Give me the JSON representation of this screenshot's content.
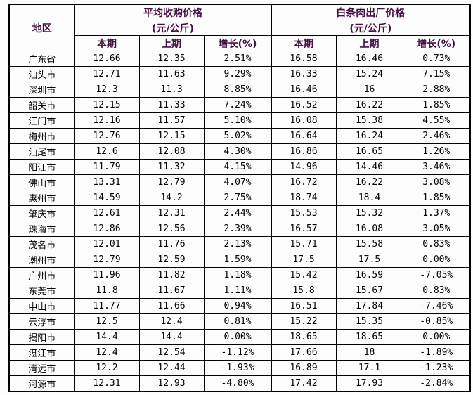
{
  "table": {
    "region_header": "地区",
    "groups": [
      {
        "title": "平均收购价格",
        "unit": "(元/公斤)"
      },
      {
        "title": "白条肉出厂价格",
        "unit": "(元/公斤)"
      }
    ],
    "sub_headers": [
      "本期",
      "上期",
      "增长(%)"
    ]
  },
  "colors": {
    "header_text": "#431043",
    "body_text": "#000000",
    "border": "#000000",
    "background": "#fdfdfd"
  },
  "chart_data": {
    "type": "table",
    "title": "",
    "columns": [
      "地区",
      "平均收购价格(元/公斤) 本期",
      "平均收购价格(元/公斤) 上期",
      "平均收购价格(元/公斤) 增长(%)",
      "白条肉出厂价格(元/公斤) 本期",
      "白条肉出厂价格(元/公斤) 上期",
      "白条肉出厂价格(元/公斤) 增长(%)"
    ],
    "rows": [
      [
        "广东省",
        "12.66",
        "12.35",
        "2.51%",
        "16.58",
        "16.46",
        "0.73%"
      ],
      [
        "汕头市",
        "12.71",
        "11.63",
        "9.29%",
        "16.33",
        "15.24",
        "7.15%"
      ],
      [
        "深圳市",
        "12.3",
        "11.3",
        "8.85%",
        "16.46",
        "16",
        "2.88%"
      ],
      [
        "韶关市",
        "12.15",
        "11.33",
        "7.24%",
        "16.52",
        "16.22",
        "1.85%"
      ],
      [
        "江门市",
        "12.16",
        "11.57",
        "5.10%",
        "16.08",
        "15.38",
        "4.55%"
      ],
      [
        "梅州市",
        "12.76",
        "12.15",
        "5.02%",
        "16.64",
        "16.24",
        "2.46%"
      ],
      [
        "汕尾市",
        "12.6",
        "12.08",
        "4.30%",
        "16.86",
        "16.65",
        "1.26%"
      ],
      [
        "阳江市",
        "11.79",
        "11.32",
        "4.15%",
        "14.96",
        "14.46",
        "3.46%"
      ],
      [
        "佛山市",
        "13.31",
        "12.79",
        "4.07%",
        "16.72",
        "16.22",
        "3.08%"
      ],
      [
        "惠州市",
        "14.59",
        "14.2",
        "2.75%",
        "18.74",
        "18.4",
        "1.85%"
      ],
      [
        "肇庆市",
        "12.61",
        "12.31",
        "2.44%",
        "15.53",
        "15.32",
        "1.37%"
      ],
      [
        "珠海市",
        "12.86",
        "12.56",
        "2.39%",
        "16.57",
        "16.08",
        "3.05%"
      ],
      [
        "茂名市",
        "12.01",
        "11.76",
        "2.13%",
        "15.71",
        "15.58",
        "0.83%"
      ],
      [
        "潮州市",
        "12.79",
        "12.59",
        "1.59%",
        "17.5",
        "17.5",
        "0.00%"
      ],
      [
        "广州市",
        "11.96",
        "11.82",
        "1.18%",
        "15.42",
        "16.59",
        "-7.05%"
      ],
      [
        "东莞市",
        "11.8",
        "11.67",
        "1.11%",
        "15.8",
        "15.67",
        "0.83%"
      ],
      [
        "中山市",
        "11.77",
        "11.66",
        "0.94%",
        "16.51",
        "17.84",
        "-7.46%"
      ],
      [
        "云浮市",
        "12.5",
        "12.4",
        "0.81%",
        "15.22",
        "15.35",
        "-0.85%"
      ],
      [
        "揭阳市",
        "14.4",
        "14.4",
        "0.00%",
        "18.65",
        "18.65",
        "0.00%"
      ],
      [
        "湛江市",
        "12.4",
        "12.54",
        "-1.12%",
        "17.66",
        "18",
        "-1.89%"
      ],
      [
        "清远市",
        "12.2",
        "12.44",
        "-1.93%",
        "16.89",
        "17.1",
        "-1.23%"
      ],
      [
        "河源市",
        "12.31",
        "12.93",
        "-4.80%",
        "17.42",
        "17.93",
        "-2.84%"
      ]
    ]
  }
}
